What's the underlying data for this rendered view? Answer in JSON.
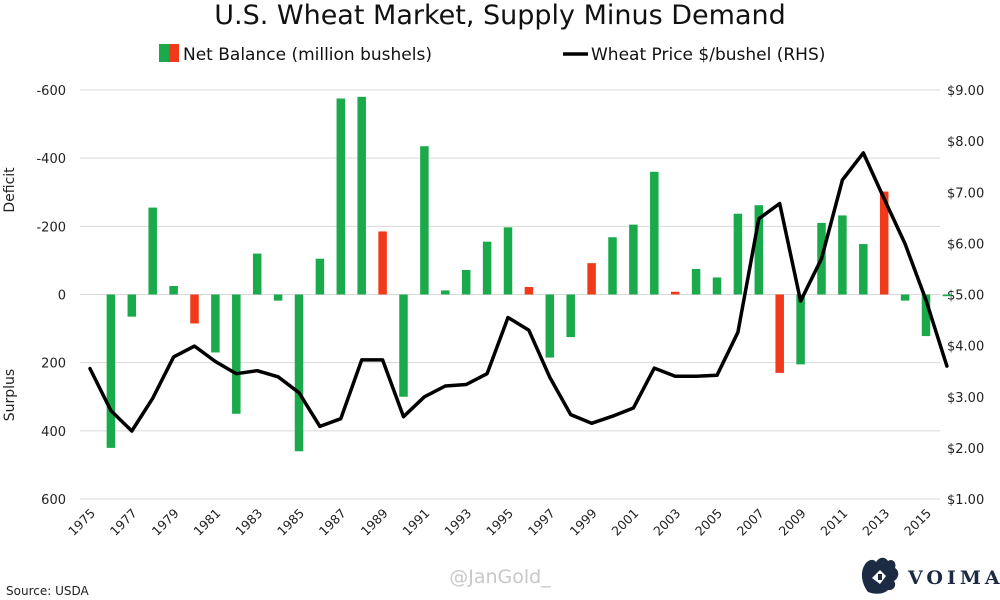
{
  "chart_data": {
    "type": "bar+line",
    "title": "U.S. Wheat Market, Supply Minus Demand",
    "legend": [
      {
        "label": "Net Balance (million bushels)",
        "colors": [
          "#1aaa4b",
          "#f03a1a"
        ]
      },
      {
        "label": "Wheat Price $/bushel (RHS)",
        "color": "#000000"
      }
    ],
    "left_axis": {
      "ticks": [
        -600,
        -400,
        -200,
        0,
        200,
        400,
        600
      ],
      "tick_labels": [
        "-600",
        "-400",
        "-200",
        "0",
        "200",
        "400",
        "600"
      ],
      "range": [
        -600,
        600
      ],
      "inverted": true,
      "label_top": "Deficit",
      "label_bottom": "Surplus"
    },
    "right_axis": {
      "ticks": [
        9,
        8,
        7,
        6,
        5,
        4,
        3,
        2,
        1
      ],
      "tick_labels": [
        "$9.00",
        "$8.00",
        "$7.00",
        "$6.00",
        "$5.00",
        "$4.00",
        "$3.00",
        "$2.00",
        "$1.00"
      ],
      "range": [
        1,
        9
      ]
    },
    "x_labels": [
      "1975",
      "1977",
      "1979",
      "1981",
      "1983",
      "1985",
      "1987",
      "1989",
      "1991",
      "1993",
      "1995",
      "1997",
      "1999",
      "2001",
      "2003",
      "2005",
      "2007",
      "2009",
      "2011",
      "2013",
      "2015"
    ],
    "years": [
      1975,
      1976,
      1977,
      1978,
      1979,
      1980,
      1981,
      1982,
      1983,
      1984,
      1985,
      1986,
      1987,
      1988,
      1989,
      1990,
      1991,
      1992,
      1993,
      1994,
      1995,
      1996,
      1997,
      1998,
      1999,
      2000,
      2001,
      2002,
      2003,
      2004,
      2005,
      2006,
      2007,
      2008,
      2009,
      2010,
      2011,
      2012,
      2013,
      2014,
      2015,
      2016
    ],
    "bars": [
      {
        "year": 1976,
        "value": 450,
        "color": "green"
      },
      {
        "year": 1977,
        "value": 65,
        "color": "green"
      },
      {
        "year": 1978,
        "value": -255,
        "color": "green"
      },
      {
        "year": 1979,
        "value": -25,
        "color": "green"
      },
      {
        "year": 1980,
        "value": 85,
        "color": "red"
      },
      {
        "year": 1981,
        "value": 170,
        "color": "green"
      },
      {
        "year": 1982,
        "value": 350,
        "color": "green"
      },
      {
        "year": 1983,
        "value": -120,
        "color": "green"
      },
      {
        "year": 1984,
        "value": 18,
        "color": "green"
      },
      {
        "year": 1985,
        "value": 460,
        "color": "green"
      },
      {
        "year": 1986,
        "value": -105,
        "color": "green"
      },
      {
        "year": 1987,
        "value": -575,
        "color": "green"
      },
      {
        "year": 1988,
        "value": -580,
        "color": "green"
      },
      {
        "year": 1989,
        "value": -185,
        "color": "red"
      },
      {
        "year": 1990,
        "value": 300,
        "color": "green"
      },
      {
        "year": 1991,
        "value": -435,
        "color": "green"
      },
      {
        "year": 1992,
        "value": -12,
        "color": "green"
      },
      {
        "year": 1993,
        "value": -72,
        "color": "green"
      },
      {
        "year": 1994,
        "value": -155,
        "color": "green"
      },
      {
        "year": 1995,
        "value": -197,
        "color": "green"
      },
      {
        "year": 1996,
        "value": -22,
        "color": "red"
      },
      {
        "year": 1997,
        "value": 185,
        "color": "green"
      },
      {
        "year": 1998,
        "value": 125,
        "color": "green"
      },
      {
        "year": 1999,
        "value": -92,
        "color": "red"
      },
      {
        "year": 2000,
        "value": -168,
        "color": "green"
      },
      {
        "year": 2001,
        "value": -205,
        "color": "green"
      },
      {
        "year": 2002,
        "value": -360,
        "color": "green"
      },
      {
        "year": 2003,
        "value": -8,
        "color": "red"
      },
      {
        "year": 2004,
        "value": -75,
        "color": "green"
      },
      {
        "year": 2005,
        "value": -50,
        "color": "green"
      },
      {
        "year": 2006,
        "value": -237,
        "color": "green"
      },
      {
        "year": 2007,
        "value": -262,
        "color": "green"
      },
      {
        "year": 2008,
        "value": 230,
        "color": "red"
      },
      {
        "year": 2009,
        "value": 205,
        "color": "green"
      },
      {
        "year": 2010,
        "value": -210,
        "color": "green"
      },
      {
        "year": 2011,
        "value": -232,
        "color": "green"
      },
      {
        "year": 2012,
        "value": -148,
        "color": "green"
      },
      {
        "year": 2013,
        "value": -302,
        "color": "red"
      },
      {
        "year": 2014,
        "value": 18,
        "color": "green"
      },
      {
        "year": 2015,
        "value": 122,
        "color": "green"
      },
      {
        "year": 2016,
        "value": 5,
        "color": "green"
      }
    ],
    "price_line": [
      {
        "year": 1975,
        "value": 3.55
      },
      {
        "year": 1976,
        "value": 2.73
      },
      {
        "year": 1977,
        "value": 2.33
      },
      {
        "year": 1978,
        "value": 2.97
      },
      {
        "year": 1979,
        "value": 3.78
      },
      {
        "year": 1980,
        "value": 3.99
      },
      {
        "year": 1981,
        "value": 3.69
      },
      {
        "year": 1982,
        "value": 3.45
      },
      {
        "year": 1983,
        "value": 3.51
      },
      {
        "year": 1984,
        "value": 3.39
      },
      {
        "year": 1985,
        "value": 3.08
      },
      {
        "year": 1986,
        "value": 2.42
      },
      {
        "year": 1987,
        "value": 2.57
      },
      {
        "year": 1988,
        "value": 3.72
      },
      {
        "year": 1989,
        "value": 3.72
      },
      {
        "year": 1990,
        "value": 2.61
      },
      {
        "year": 1991,
        "value": 3.0
      },
      {
        "year": 1992,
        "value": 3.21
      },
      {
        "year": 1993,
        "value": 3.24
      },
      {
        "year": 1994,
        "value": 3.45
      },
      {
        "year": 1995,
        "value": 4.55
      },
      {
        "year": 1996,
        "value": 4.3
      },
      {
        "year": 1997,
        "value": 3.38
      },
      {
        "year": 1998,
        "value": 2.65
      },
      {
        "year": 1999,
        "value": 2.48
      },
      {
        "year": 2000,
        "value": 2.62
      },
      {
        "year": 2001,
        "value": 2.78
      },
      {
        "year": 2002,
        "value": 3.56
      },
      {
        "year": 2003,
        "value": 3.4
      },
      {
        "year": 2004,
        "value": 3.4
      },
      {
        "year": 2005,
        "value": 3.42
      },
      {
        "year": 2006,
        "value": 4.26
      },
      {
        "year": 2007,
        "value": 6.48
      },
      {
        "year": 2008,
        "value": 6.78
      },
      {
        "year": 2009,
        "value": 4.87
      },
      {
        "year": 2010,
        "value": 5.7
      },
      {
        "year": 2011,
        "value": 7.24
      },
      {
        "year": 2012,
        "value": 7.77
      },
      {
        "year": 2013,
        "value": 6.87
      },
      {
        "year": 2014,
        "value": 5.99
      },
      {
        "year": 2015,
        "value": 4.89
      },
      {
        "year": 2016,
        "value": 3.6
      }
    ]
  },
  "colors": {
    "green": "#1aaa4b",
    "red": "#f03a1a",
    "line": "#000000",
    "grid": "#d9d9d9"
  },
  "footer": {
    "source": "Source: USDA",
    "watermark": "@JanGold_",
    "brand": "VOIMA"
  }
}
